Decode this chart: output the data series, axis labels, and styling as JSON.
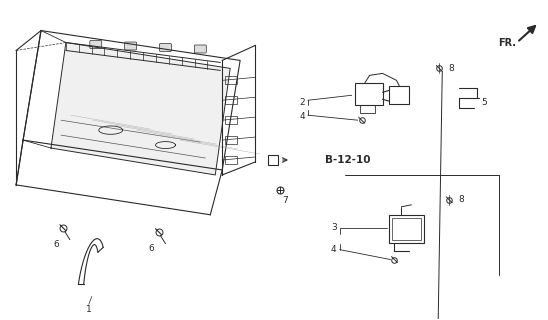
{
  "bg_color": "#ffffff",
  "line_color": "#2a2a2a",
  "figsize": [
    5.48,
    3.2
  ],
  "dpi": 100,
  "fr_text": "FR.",
  "ref_label": "B-12-10"
}
